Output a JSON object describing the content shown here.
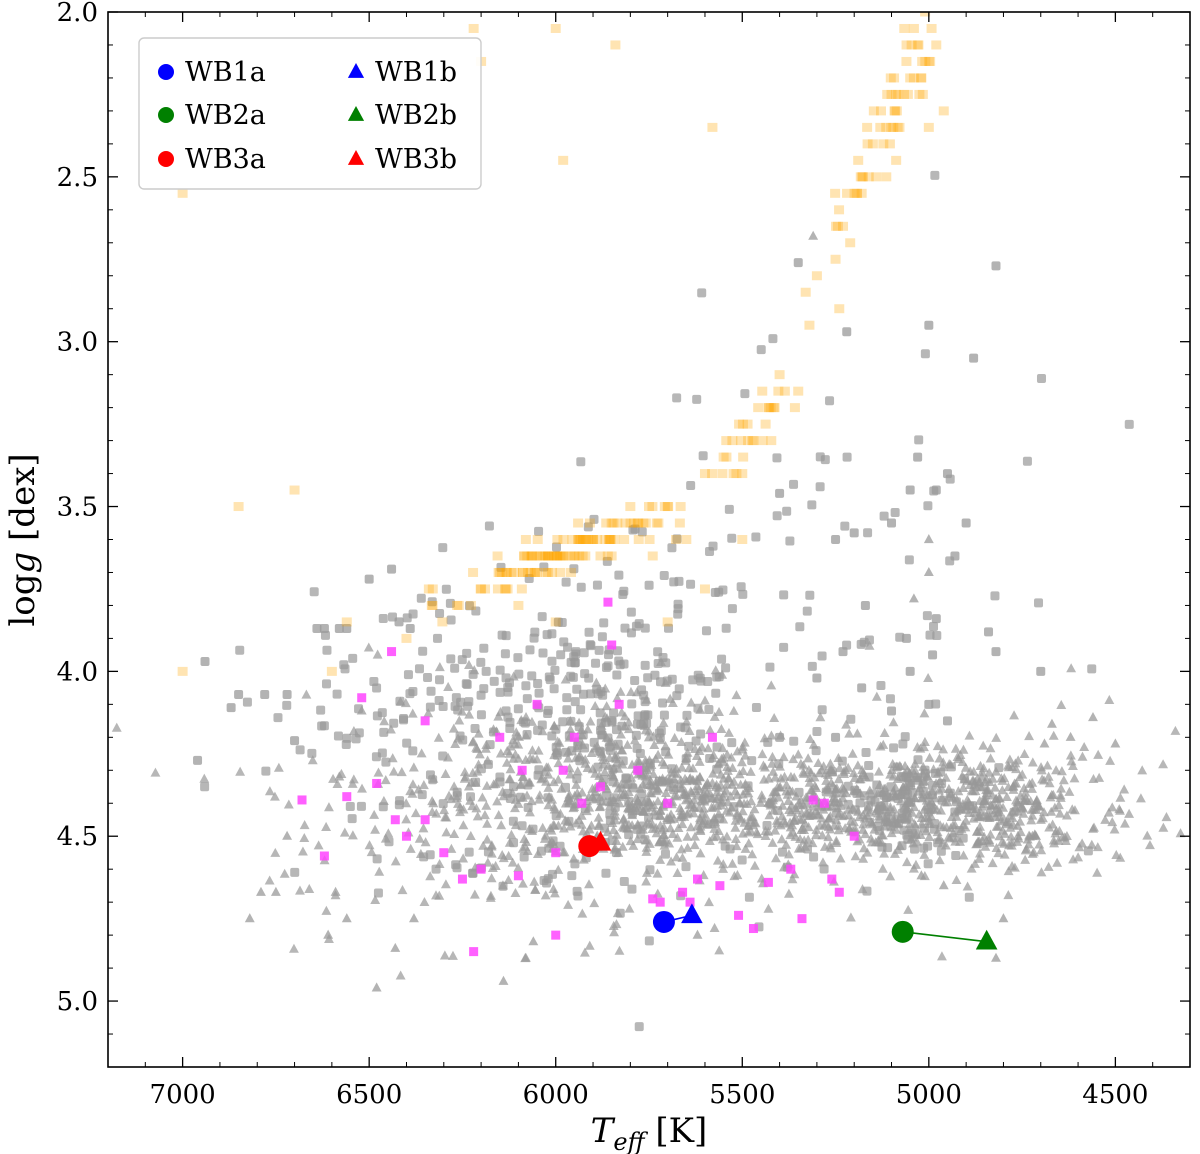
{
  "chart_data": {
    "type": "scatter",
    "xlabel": "T_eff [K]",
    "xlabel_main": "T",
    "xlabel_sub": "eff",
    "xlabel_unit": " [K]",
    "ylabel": "log g [dex]",
    "ylabel_prefix": "log",
    "ylabel_var": "g",
    "ylabel_unit": " [dex]",
    "xlim": [
      7200,
      4300
    ],
    "ylim": [
      5.2,
      2.0
    ],
    "x_ticks": [
      7000,
      6500,
      6000,
      5500,
      5000,
      4500
    ],
    "x_tick_labels": [
      "7000",
      "6500",
      "6000",
      "5500",
      "5000",
      "4500"
    ],
    "y_ticks": [
      2.0,
      2.5,
      3.0,
      3.5,
      4.0,
      4.5,
      5.0
    ],
    "y_tick_labels": [
      "2.0",
      "2.5",
      "3.0",
      "3.5",
      "4.0",
      "4.5",
      "5.0"
    ],
    "legend_position": "upper-left",
    "colors": {
      "wb1": "#0000ff",
      "wb2": "#008000",
      "wb3": "#ff0000",
      "background_gray": "#999999",
      "giants_orange": "#ffa500",
      "magenta": "#ff44ff"
    },
    "legend": [
      {
        "label": "WB1a",
        "marker": "circle",
        "color": "#0000ff"
      },
      {
        "label": "WB2a",
        "marker": "circle",
        "color": "#008000"
      },
      {
        "label": "WB3a",
        "marker": "circle",
        "color": "#ff0000"
      },
      {
        "label": "WB1b",
        "marker": "triangle",
        "color": "#0000ff"
      },
      {
        "label": "WB2b",
        "marker": "triangle",
        "color": "#008000"
      },
      {
        "label": "WB3b",
        "marker": "triangle",
        "color": "#ff0000"
      }
    ],
    "wide_binaries": [
      {
        "name": "WB1",
        "color": "#0000ff",
        "a": [
          5710,
          4.76
        ],
        "b": [
          5635,
          4.74
        ]
      },
      {
        "name": "WB2",
        "color": "#008000",
        "a": [
          5070,
          4.79
        ],
        "b": [
          4845,
          4.82
        ]
      },
      {
        "name": "WB3",
        "color": "#ff0000",
        "a": [
          5910,
          4.53
        ],
        "b": [
          5880,
          4.52
        ]
      }
    ],
    "orange_giants": [
      [
        7000,
        2.55
      ],
      [
        6850,
        3.5
      ],
      [
        6700,
        3.45
      ],
      [
        7000,
        4.0
      ],
      [
        6600,
        4.0
      ],
      [
        6560,
        3.85
      ],
      [
        6340,
        3.75
      ],
      [
        6260,
        3.8
      ],
      [
        6200,
        3.75
      ],
      [
        6150,
        3.7
      ],
      [
        6050,
        3.7
      ],
      [
        5980,
        3.65
      ],
      [
        5900,
        3.6
      ],
      [
        5850,
        3.55
      ],
      [
        5800,
        3.5
      ],
      [
        5750,
        3.5
      ],
      [
        5700,
        3.5
      ],
      [
        5650,
        3.6
      ],
      [
        5600,
        3.4
      ],
      [
        5550,
        3.35
      ],
      [
        5500,
        3.4
      ],
      [
        5470,
        3.3
      ],
      [
        5430,
        3.2
      ],
      [
        5400,
        3.1
      ],
      [
        5350,
        3.15
      ],
      [
        5320,
        2.95
      ],
      [
        5300,
        2.8
      ],
      [
        5250,
        2.75
      ],
      [
        5230,
        2.65
      ],
      [
        5180,
        2.55
      ],
      [
        5150,
        2.4
      ],
      [
        5130,
        2.35
      ],
      [
        5100,
        2.25
      ],
      [
        5060,
        2.15
      ],
      [
        5040,
        2.05
      ],
      [
        5010,
        2.0
      ],
      [
        4980,
        2.1
      ],
      [
        4960,
        2.3
      ],
      [
        5000,
        2.35
      ],
      [
        5020,
        2.2
      ],
      [
        5030,
        2.1
      ],
      [
        6000,
        2.05
      ],
      [
        6200,
        2.15
      ],
      [
        6220,
        2.05
      ],
      [
        5840,
        2.1
      ],
      [
        5580,
        2.35
      ],
      [
        5980,
        2.45
      ],
      [
        5240,
        2.9
      ],
      [
        5330,
        2.85
      ],
      [
        5500,
        3.6
      ],
      [
        5600,
        3.75
      ],
      [
        6100,
        3.8
      ],
      [
        6000,
        3.85
      ],
      [
        5700,
        3.85
      ],
      [
        5740,
        3.65
      ],
      [
        5880,
        3.65
      ],
      [
        6400,
        3.9
      ],
      [
        6080,
        3.6
      ],
      [
        5940,
        3.55
      ]
    ],
    "orange_dense_segments": [
      [
        6230,
        3.75,
        5720,
        3.52
      ],
      [
        6330,
        3.8,
        5900,
        3.62
      ],
      [
        6150,
        3.7,
        5780,
        3.55
      ],
      [
        6060,
        3.68,
        5640,
        3.5
      ],
      [
        5260,
        2.7,
        5000,
        2.05
      ],
      [
        5200,
        2.55,
        4990,
        2.1
      ],
      [
        5550,
        3.4,
        5400,
        3.15
      ]
    ],
    "magenta_points": [
      [
        6680,
        4.39
      ],
      [
        6560,
        4.38
      ],
      [
        6520,
        4.08
      ],
      [
        6440,
        3.94
      ],
      [
        6430,
        4.45
      ],
      [
        6400,
        4.5
      ],
      [
        6350,
        4.15
      ],
      [
        6300,
        4.55
      ],
      [
        6250,
        4.63
      ],
      [
        6220,
        4.85
      ],
      [
        6200,
        4.6
      ],
      [
        6150,
        4.2
      ],
      [
        6100,
        4.62
      ],
      [
        6090,
        4.3
      ],
      [
        6050,
        4.1
      ],
      [
        6000,
        4.8
      ],
      [
        6000,
        4.55
      ],
      [
        5980,
        4.3
      ],
      [
        5950,
        4.2
      ],
      [
        5930,
        4.4
      ],
      [
        5880,
        4.35
      ],
      [
        5860,
        3.79
      ],
      [
        5850,
        3.92
      ],
      [
        5830,
        4.1
      ],
      [
        5780,
        4.3
      ],
      [
        5740,
        4.69
      ],
      [
        5720,
        4.7
      ],
      [
        5700,
        4.4
      ],
      [
        5660,
        4.67
      ],
      [
        5640,
        4.7
      ],
      [
        5620,
        4.63
      ],
      [
        5580,
        4.2
      ],
      [
        5560,
        4.65
      ],
      [
        5470,
        4.78
      ],
      [
        5430,
        4.64
      ],
      [
        5370,
        4.6
      ],
      [
        5340,
        4.75
      ],
      [
        5310,
        4.39
      ],
      [
        5280,
        4.4
      ],
      [
        5260,
        4.63
      ],
      [
        5240,
        4.67
      ],
      [
        5200,
        4.5
      ],
      [
        6620,
        4.56
      ],
      [
        6480,
        4.34
      ],
      [
        6350,
        4.45
      ],
      [
        5510,
        4.74
      ]
    ],
    "gray_clusters": [
      {
        "shape": "triangle",
        "cx": 5300,
        "cy": 4.4,
        "sx": 280,
        "sy": 0.08,
        "n": 560
      },
      {
        "shape": "triangle",
        "cx": 4800,
        "cy": 4.42,
        "sx": 150,
        "sy": 0.1,
        "n": 320
      },
      {
        "shape": "triangle",
        "cx": 5800,
        "cy": 4.35,
        "sx": 180,
        "sy": 0.12,
        "n": 380
      },
      {
        "shape": "triangle",
        "cx": 6200,
        "cy": 4.4,
        "sx": 250,
        "sy": 0.18,
        "n": 220
      },
      {
        "shape": "triangle",
        "cx": 5500,
        "cy": 4.4,
        "sx": 600,
        "sy": 0.22,
        "n": 150
      },
      {
        "shape": "square",
        "cx": 5850,
        "cy": 4.1,
        "sx": 160,
        "sy": 0.22,
        "n": 220
      },
      {
        "shape": "square",
        "cx": 6300,
        "cy": 4.1,
        "sx": 200,
        "sy": 0.2,
        "n": 120
      },
      {
        "shape": "square",
        "cx": 5300,
        "cy": 3.85,
        "sx": 300,
        "sy": 0.45,
        "n": 110
      },
      {
        "shape": "square",
        "cx": 5050,
        "cy": 4.4,
        "sx": 80,
        "sy": 0.08,
        "n": 90
      },
      {
        "shape": "square",
        "cx": 5950,
        "cy": 4.5,
        "sx": 300,
        "sy": 0.15,
        "n": 80
      }
    ],
    "gray_outliers": [
      [
        6960,
        4.27
      ],
      [
        6940,
        3.97
      ],
      [
        6870,
        4.11
      ],
      [
        6850,
        4.07
      ],
      [
        6780,
        4.07
      ],
      [
        6720,
        4.07
      ],
      [
        6700,
        4.21
      ],
      [
        6640,
        3.87
      ],
      [
        6620,
        3.87
      ],
      [
        6580,
        3.87
      ],
      [
        6560,
        3.87
      ],
      [
        6500,
        3.72
      ],
      [
        6440,
        3.69
      ],
      [
        6420,
        3.85
      ],
      [
        6390,
        3.87
      ],
      [
        5350,
        2.76
      ],
      [
        4820,
        2.77
      ],
      [
        5220,
        2.97
      ],
      [
        5000,
        2.95
      ],
      [
        4880,
        3.05
      ],
      [
        5030,
        3.35
      ],
      [
        4950,
        3.4
      ],
      [
        4980,
        3.45
      ],
      [
        5050,
        3.45
      ],
      [
        5200,
        3.58
      ],
      [
        5100,
        3.55
      ],
      [
        5400,
        3.46
      ],
      [
        4930,
        3.65
      ],
      [
        4900,
        3.55
      ],
      [
        5250,
        3.6
      ],
      [
        5170,
        3.8
      ],
      [
        5060,
        3.9
      ],
      [
        4990,
        3.95
      ],
      [
        4980,
        3.84
      ],
      [
        5050,
        4.0
      ],
      [
        5180,
        4.05
      ],
      [
        5230,
        3.94
      ],
      [
        5400,
        4.2
      ],
      [
        5250,
        4.2
      ],
      [
        5000,
        4.1
      ],
      [
        5300,
        4.02
      ],
      [
        4950,
        4.15
      ],
      [
        5100,
        4.12
      ],
      [
        4840,
        3.88
      ],
      [
        4820,
        3.94
      ],
      [
        4700,
        4.0
      ]
    ],
    "gray_triangle_outliers": [
      [
        6820,
        4.75
      ],
      [
        6790,
        4.67
      ],
      [
        6750,
        4.67
      ],
      [
        6610,
        4.8
      ],
      [
        6590,
        4.67
      ],
      [
        6560,
        4.75
      ],
      [
        6480,
        4.96
      ],
      [
        6430,
        4.84
      ],
      [
        6380,
        4.75
      ],
      [
        6140,
        4.94
      ],
      [
        6080,
        4.87
      ],
      [
        6060,
        4.82
      ],
      [
        5620,
        4.8
      ],
      [
        5020,
        4.62
      ],
      [
        4960,
        4.65
      ],
      [
        4860,
        4.83
      ],
      [
        4820,
        4.87
      ],
      [
        4800,
        4.75
      ],
      [
        5310,
        2.68
      ],
      [
        5000,
        3.7
      ],
      [
        5040,
        3.78
      ],
      [
        5000,
        3.6
      ],
      [
        4500,
        4.22
      ],
      [
        4560,
        4.14
      ],
      [
        4620,
        4.2
      ],
      [
        4670,
        4.16
      ],
      [
        4690,
        4.22
      ],
      [
        6520,
        4.12
      ],
      [
        6720,
        4.5
      ],
      [
        6580,
        4.32
      ]
    ]
  }
}
